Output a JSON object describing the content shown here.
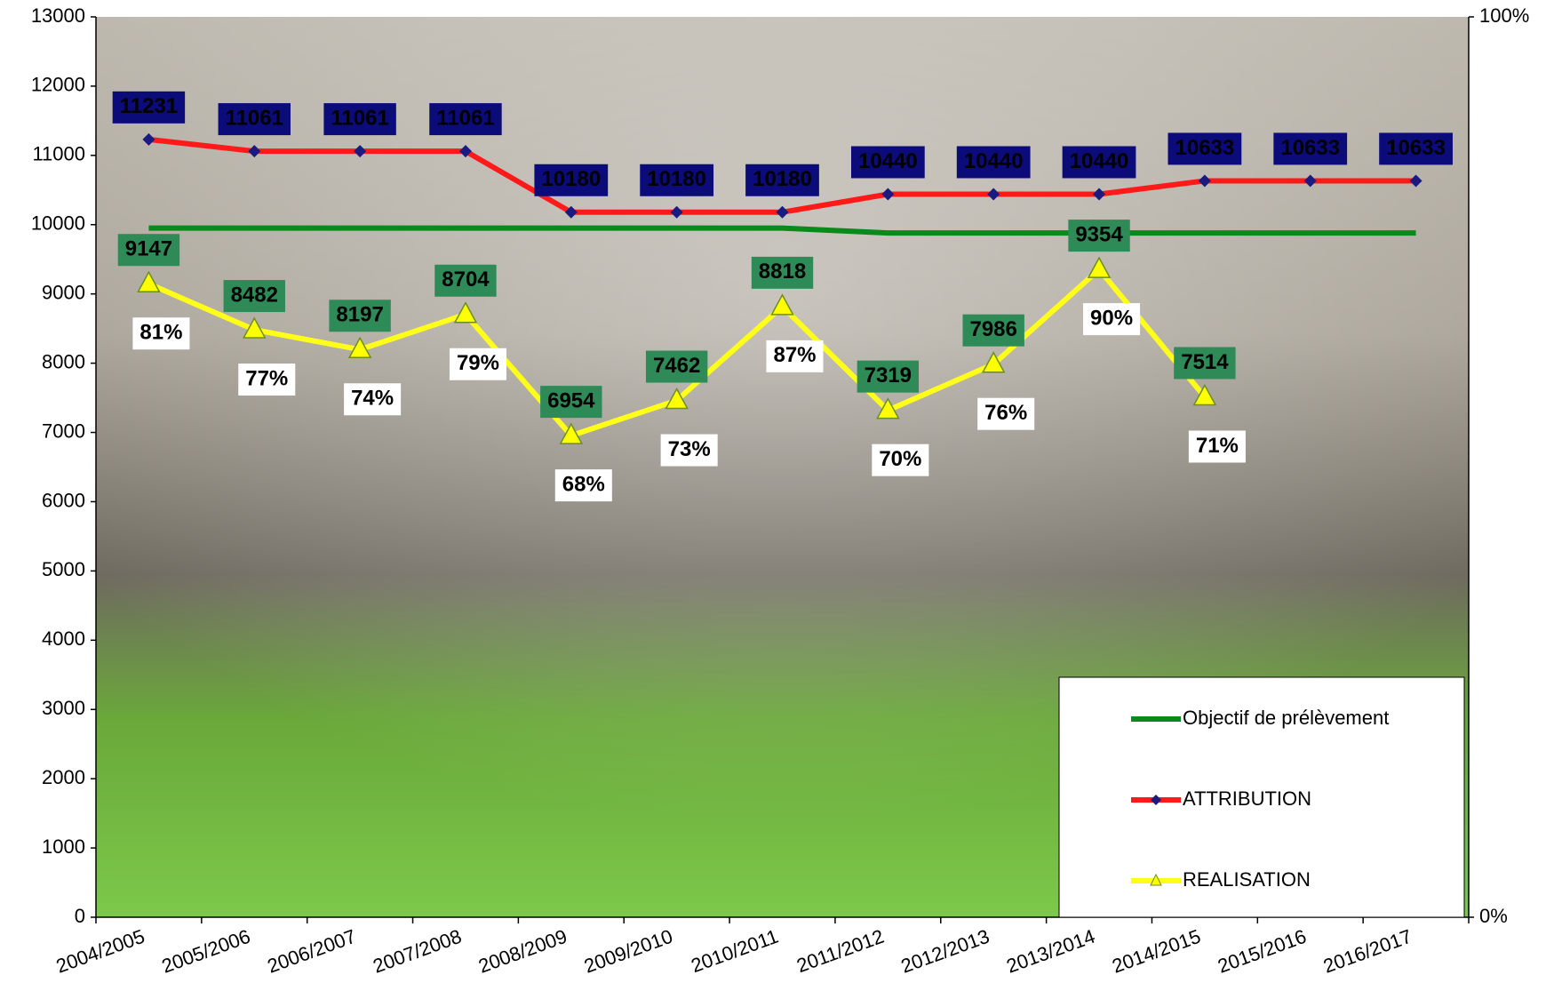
{
  "chart_data": {
    "type": "line",
    "categories": [
      "2004/2005",
      "2005/2006",
      "2006/2007",
      "2007/2008",
      "2008/2009",
      "2009/2010",
      "2010/2011",
      "2011/2012",
      "2012/2013",
      "2013/2014",
      "2014/2015",
      "2015/2016",
      "2016/2017"
    ],
    "series": [
      {
        "name": "Objectif de prélèvement",
        "color": "#0a8a1a",
        "values": [
          9950,
          9950,
          9950,
          9950,
          9950,
          9950,
          9950,
          9880,
          9880,
          9880,
          9880,
          9880,
          9880
        ]
      },
      {
        "name": "ATTRIBUTION",
        "color": "#ff1a1a",
        "marker_color": "#1a1a80",
        "label_box": "#0b0b7a",
        "label_text": "#ffffff",
        "values": [
          11231,
          11061,
          11061,
          11061,
          10180,
          10180,
          10180,
          10440,
          10440,
          10440,
          10633,
          10633,
          10633
        ]
      },
      {
        "name": "REALISATION",
        "color": "#ffff1a",
        "marker_color": "#ffff00",
        "label_box": "#2e8b57",
        "label_text": "#ffff33",
        "values": [
          9147,
          8482,
          8197,
          8704,
          6954,
          7462,
          8818,
          7319,
          7986,
          9354,
          7514,
          null,
          null
        ],
        "rate_labels": [
          "81%",
          "77%",
          "74%",
          "79%",
          "68%",
          "73%",
          "87%",
          "70%",
          "76%",
          "90%",
          "71%",
          null,
          null
        ]
      }
    ],
    "ylim": [
      0,
      13000
    ],
    "yticks": [
      0,
      1000,
      2000,
      3000,
      4000,
      5000,
      6000,
      7000,
      8000,
      9000,
      10000,
      11000,
      12000,
      13000
    ],
    "y2lim": [
      0,
      100
    ],
    "y2ticks": [
      {
        "value": 0,
        "label": "0%"
      },
      {
        "value": 100,
        "label": "100%"
      }
    ],
    "legend": "bottom-right"
  }
}
